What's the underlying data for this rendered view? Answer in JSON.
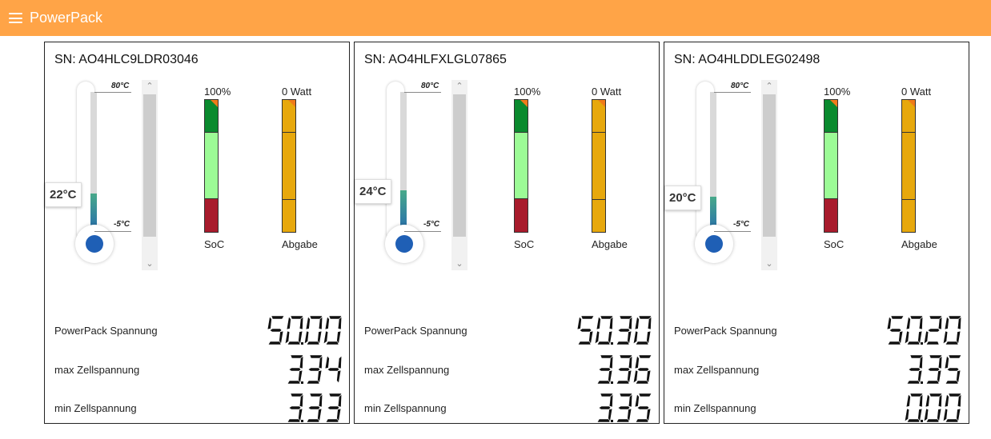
{
  "app": {
    "title": "PowerPack",
    "menu_icon": "menu-icon",
    "header_color": "#ffa447"
  },
  "labels": {
    "temp_max": "80°C",
    "temp_min": "-5°C",
    "soc_label": "SoC",
    "output_label": "Abgabe",
    "voltage_label": "PowerPack Spannung",
    "max_cell_label": "max Zellspannung",
    "min_cell_label": "min Zellspannung"
  },
  "colors": {
    "soc_high": "#0a8a2e",
    "soc_mid": "#9cfb96",
    "soc_low": "#a81b2c",
    "output": "#e7a80d",
    "thermo": "#1f5fb5"
  },
  "packs": [
    {
      "sn": "SN: AO4HLC9LDR03046",
      "temperature": "22°C",
      "temp_value": 22,
      "soc": "100%",
      "output": "0 Watt",
      "voltage": "50.00",
      "max_cell": "3.34",
      "min_cell": "3.33"
    },
    {
      "sn": "SN: AO4HLFXLGL07865",
      "temperature": "24°C",
      "temp_value": 24,
      "soc": "100%",
      "output": "0 Watt",
      "voltage": "50.30",
      "max_cell": "3.36",
      "min_cell": "3.35"
    },
    {
      "sn": "SN: AO4HLDDLEG02498",
      "temperature": "20°C",
      "temp_value": 20,
      "soc": "100%",
      "output": "0 Watt",
      "voltage": "50.20",
      "max_cell": "3.35",
      "min_cell": "0.00"
    }
  ]
}
